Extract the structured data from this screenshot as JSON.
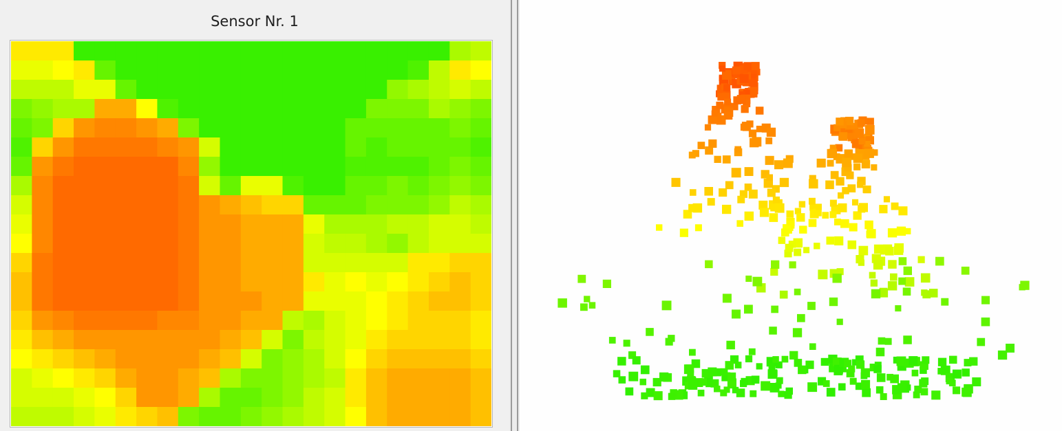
{
  "panel": {
    "title": "Sensor Nr. 1"
  },
  "colors": {
    "pane_background": "#f0f0f0",
    "viewport_background": "#ffffff",
    "splitter_line": "#9a9a9a",
    "scale_low": "#22ee00",
    "scale_mid": "#ffff00",
    "scale_high": "#ff4c00"
  },
  "heatmap": {
    "grid": "23x20",
    "colormap": [
      "green",
      "yellow",
      "orange",
      "red"
    ],
    "values": [
      [
        0.55,
        0.55,
        0.55,
        0.05,
        0.05,
        0.05,
        0.05,
        0.05,
        0.05,
        0.05,
        0.05,
        0.05,
        0.05,
        0.05,
        0.05,
        0.05,
        0.05,
        0.05,
        0.05,
        0.05,
        0.05,
        0.3,
        0.35
      ],
      [
        0.45,
        0.45,
        0.5,
        0.55,
        0.15,
        0.05,
        0.05,
        0.05,
        0.05,
        0.05,
        0.05,
        0.05,
        0.05,
        0.05,
        0.05,
        0.05,
        0.05,
        0.05,
        0.05,
        0.1,
        0.35,
        0.55,
        0.5
      ],
      [
        0.35,
        0.35,
        0.35,
        0.45,
        0.45,
        0.15,
        0.05,
        0.05,
        0.05,
        0.05,
        0.05,
        0.05,
        0.05,
        0.05,
        0.05,
        0.05,
        0.05,
        0.05,
        0.25,
        0.3,
        0.35,
        0.4,
        0.35
      ],
      [
        0.2,
        0.25,
        0.3,
        0.3,
        0.7,
        0.7,
        0.5,
        0.1,
        0.05,
        0.05,
        0.05,
        0.05,
        0.05,
        0.05,
        0.05,
        0.05,
        0.05,
        0.2,
        0.2,
        0.2,
        0.3,
        0.25,
        0.2
      ],
      [
        0.15,
        0.2,
        0.6,
        0.75,
        0.8,
        0.8,
        0.75,
        0.7,
        0.2,
        0.05,
        0.05,
        0.05,
        0.05,
        0.05,
        0.05,
        0.05,
        0.15,
        0.15,
        0.15,
        0.15,
        0.15,
        0.2,
        0.15
      ],
      [
        0.1,
        0.6,
        0.75,
        0.85,
        0.85,
        0.85,
        0.85,
        0.8,
        0.75,
        0.4,
        0.05,
        0.05,
        0.05,
        0.05,
        0.05,
        0.05,
        0.15,
        0.1,
        0.15,
        0.15,
        0.15,
        0.15,
        0.1
      ],
      [
        0.15,
        0.75,
        0.85,
        0.9,
        0.9,
        0.9,
        0.9,
        0.9,
        0.8,
        0.25,
        0.05,
        0.05,
        0.05,
        0.05,
        0.05,
        0.05,
        0.1,
        0.1,
        0.1,
        0.1,
        0.15,
        0.2,
        0.15
      ],
      [
        0.3,
        0.8,
        0.9,
        0.9,
        0.9,
        0.9,
        0.9,
        0.9,
        0.85,
        0.4,
        0.15,
        0.45,
        0.45,
        0.1,
        0.05,
        0.05,
        0.15,
        0.15,
        0.2,
        0.15,
        0.2,
        0.25,
        0.2
      ],
      [
        0.4,
        0.8,
        0.9,
        0.9,
        0.9,
        0.9,
        0.9,
        0.9,
        0.85,
        0.75,
        0.7,
        0.65,
        0.6,
        0.6,
        0.15,
        0.15,
        0.15,
        0.2,
        0.2,
        0.2,
        0.25,
        0.35,
        0.3
      ],
      [
        0.45,
        0.8,
        0.9,
        0.9,
        0.9,
        0.9,
        0.9,
        0.9,
        0.85,
        0.75,
        0.75,
        0.7,
        0.7,
        0.7,
        0.45,
        0.3,
        0.3,
        0.3,
        0.35,
        0.35,
        0.4,
        0.4,
        0.35
      ],
      [
        0.5,
        0.8,
        0.9,
        0.9,
        0.9,
        0.9,
        0.9,
        0.9,
        0.85,
        0.75,
        0.75,
        0.7,
        0.7,
        0.7,
        0.4,
        0.35,
        0.35,
        0.3,
        0.25,
        0.35,
        0.4,
        0.4,
        0.4
      ],
      [
        0.6,
        0.85,
        0.9,
        0.9,
        0.9,
        0.9,
        0.9,
        0.9,
        0.85,
        0.75,
        0.75,
        0.7,
        0.7,
        0.7,
        0.4,
        0.4,
        0.4,
        0.4,
        0.4,
        0.55,
        0.55,
        0.6,
        0.6
      ],
      [
        0.65,
        0.85,
        0.9,
        0.9,
        0.9,
        0.9,
        0.9,
        0.9,
        0.85,
        0.75,
        0.75,
        0.7,
        0.7,
        0.7,
        0.55,
        0.45,
        0.5,
        0.45,
        0.5,
        0.55,
        0.6,
        0.65,
        0.6
      ],
      [
        0.65,
        0.85,
        0.9,
        0.9,
        0.9,
        0.9,
        0.9,
        0.9,
        0.85,
        0.75,
        0.75,
        0.75,
        0.7,
        0.7,
        0.45,
        0.45,
        0.45,
        0.5,
        0.55,
        0.6,
        0.65,
        0.65,
        0.6
      ],
      [
        0.6,
        0.75,
        0.8,
        0.85,
        0.85,
        0.85,
        0.85,
        0.8,
        0.8,
        0.75,
        0.75,
        0.7,
        0.7,
        0.35,
        0.3,
        0.4,
        0.45,
        0.5,
        0.55,
        0.6,
        0.6,
        0.6,
        0.55
      ],
      [
        0.55,
        0.65,
        0.7,
        0.75,
        0.75,
        0.75,
        0.75,
        0.75,
        0.75,
        0.75,
        0.7,
        0.65,
        0.4,
        0.2,
        0.35,
        0.4,
        0.45,
        0.55,
        0.6,
        0.6,
        0.6,
        0.6,
        0.55
      ],
      [
        0.5,
        0.55,
        0.6,
        0.65,
        0.7,
        0.75,
        0.75,
        0.75,
        0.75,
        0.7,
        0.65,
        0.4,
        0.2,
        0.25,
        0.3,
        0.4,
        0.5,
        0.6,
        0.65,
        0.65,
        0.65,
        0.65,
        0.6
      ],
      [
        0.4,
        0.45,
        0.5,
        0.55,
        0.6,
        0.7,
        0.75,
        0.75,
        0.7,
        0.65,
        0.3,
        0.2,
        0.2,
        0.25,
        0.3,
        0.35,
        0.55,
        0.65,
        0.7,
        0.7,
        0.7,
        0.7,
        0.65
      ],
      [
        0.4,
        0.4,
        0.4,
        0.45,
        0.5,
        0.6,
        0.75,
        0.75,
        0.7,
        0.3,
        0.15,
        0.15,
        0.2,
        0.25,
        0.35,
        0.4,
        0.55,
        0.65,
        0.7,
        0.7,
        0.7,
        0.7,
        0.65
      ],
      [
        0.35,
        0.35,
        0.35,
        0.4,
        0.45,
        0.55,
        0.6,
        0.65,
        0.2,
        0.15,
        0.15,
        0.2,
        0.25,
        0.3,
        0.35,
        0.4,
        0.5,
        0.65,
        0.7,
        0.7,
        0.7,
        0.7,
        0.65
      ]
    ]
  },
  "point_cloud": {
    "view": "3d-scatter",
    "colormap": [
      "green",
      "yellow",
      "orange",
      "red"
    ],
    "structures": [
      "left-peak",
      "right-peak",
      "base-rows",
      "scatter"
    ]
  }
}
